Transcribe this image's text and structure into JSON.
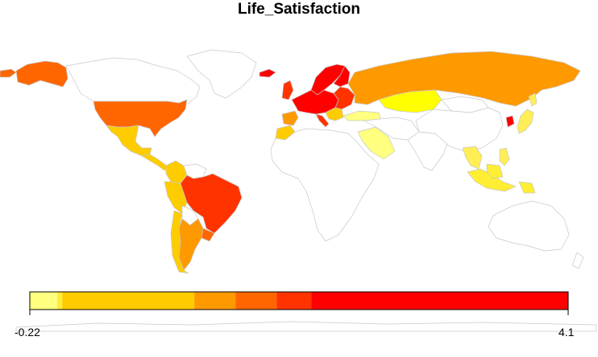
{
  "title": "Life_Satisfaction",
  "legend": {
    "min_label": "-0.22",
    "max_label": "4.1",
    "min": -0.22,
    "max": 4.1,
    "bins": [
      {
        "from": -0.22,
        "to": 0.0,
        "color": "#ffff80"
      },
      {
        "from": 0.0,
        "to": 0.04,
        "color": "#ffee33"
      },
      {
        "from": 0.04,
        "to": 1.1,
        "color": "#ffcc00"
      },
      {
        "from": 1.1,
        "to": 1.43,
        "color": "#ff9900"
      },
      {
        "from": 1.43,
        "to": 1.76,
        "color": "#ff6600"
      },
      {
        "from": 1.76,
        "to": 2.04,
        "color": "#ff3300"
      },
      {
        "from": 2.04,
        "to": 4.1,
        "color": "#ff0000"
      }
    ]
  },
  "no_data_color": "#ffffff",
  "region_colors": {
    "canada": "#ffffff",
    "alaska": "#ff6600",
    "usa": "#ff6600",
    "mexico": "#ffcc00",
    "central_america": "#ffcc00",
    "greenland": "#ffffff",
    "colombia": "#ffcc00",
    "venezuela": "#ffffff",
    "peru": "#ffcc00",
    "brazil": "#ff3300",
    "bolivia": "#ffffff",
    "chile": "#ffcc00",
    "argentina": "#ff9900",
    "uruguay": "#ff6600",
    "iceland": "#ff0000",
    "uk": "#ff3300",
    "scandinavia": "#ff0000",
    "finland": "#ff0000",
    "western_europe": "#ff0000",
    "iberia": "#ff9900",
    "italy": "#ff3300",
    "eastern_europe": "#ff3300",
    "balkans": "#ffcc00",
    "turkey": "#ffff80",
    "russia": "#ff9900",
    "kazakhstan": "#ffff00",
    "morocco": "#ffcc00",
    "africa": "#ffffff",
    "saudi_arabia": "#ffff80",
    "middle_east": "#ffffff",
    "india": "#ffffff",
    "china": "#ffffff",
    "mongolia": "#ffffff",
    "korea": "#ff0000",
    "japan": "#ffee55",
    "southeast_asia": "#ffee55",
    "indonesia": "#ffee33",
    "new_guinea": "#ffee33",
    "philippines": "#ffee55",
    "australia": "#ffffff",
    "new_zealand": "#ffffff",
    "antarctica": "#ffffff"
  }
}
